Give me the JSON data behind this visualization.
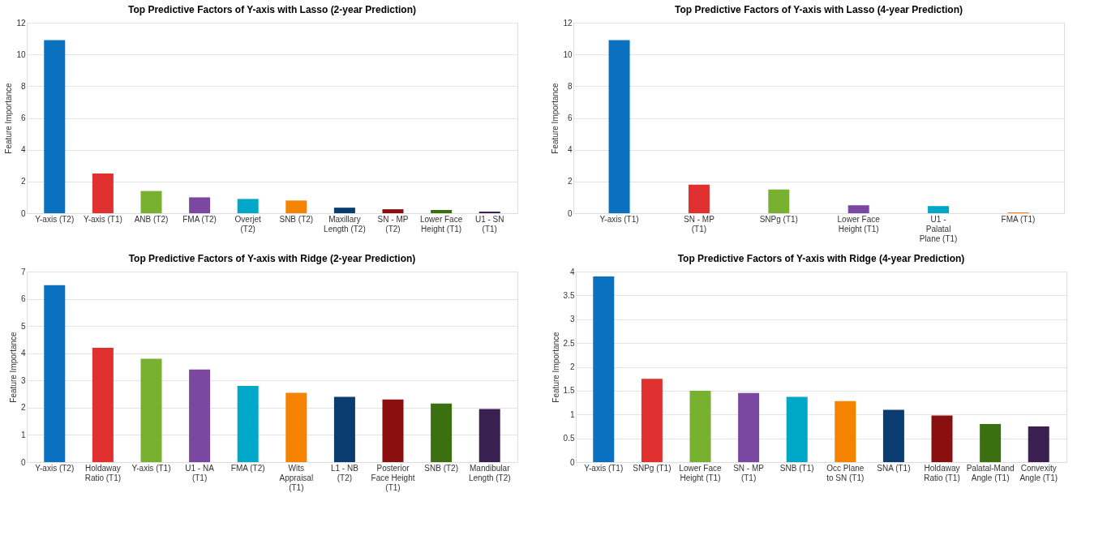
{
  "chart_data": [
    {
      "type": "bar",
      "title": "Top Predictive Factors of Y-axis with Lasso (2-year Prediction)",
      "ylabel": "Feature Importance",
      "categories": [
        "Y-axis (T2)",
        "Y-axis (T1)",
        "ANB (T2)",
        "FMA (T2)",
        "Overjet (T2)",
        "SNB (T2)",
        "Maxillary Length (T2)",
        "SN - MP (T2)",
        "Lower Face Height (T1)",
        "U1 - SN (T1)"
      ],
      "values": [
        10.9,
        2.5,
        1.4,
        1.0,
        0.9,
        0.8,
        0.35,
        0.25,
        0.2,
        0.1
      ],
      "colors": [
        "#0a70c0",
        "#e03030",
        "#78b030",
        "#7a48a0",
        "#00a8c8",
        "#f58200",
        "#0a3c70",
        "#8a1010",
        "#3a7010",
        "#3a2050"
      ],
      "ylim": [
        0,
        12
      ],
      "yticks": [
        0,
        2,
        4,
        6,
        8,
        10,
        12
      ],
      "grid": "y"
    },
    {
      "type": "bar",
      "title": "Top Predictive Factors of Y-axis with Lasso (4-year Prediction)",
      "ylabel": "Feature Importance",
      "categories": [
        "Y-axis (T1)",
        "SN - MP (T1)",
        "SNPg (T1)",
        "Lower Face Height (T1)",
        "U1 - Palatal Plane (T1)",
        "FMA (T1)"
      ],
      "values": [
        10.9,
        1.8,
        1.5,
        0.5,
        0.45,
        0.05
      ],
      "colors": [
        "#0a70c0",
        "#e03030",
        "#78b030",
        "#7a48a0",
        "#00a8c8",
        "#f58200"
      ],
      "ylim": [
        0,
        12
      ],
      "yticks": [
        0,
        2,
        4,
        6,
        8,
        10,
        12
      ],
      "grid": "y"
    },
    {
      "type": "bar",
      "title": "Top Predictive Factors of Y-axis with Ridge (2-year Prediction)",
      "ylabel": "Feature Importance",
      "categories": [
        "Y-axis (T2)",
        "Holdaway Ratio (T1)",
        "Y-axis (T1)",
        "U1 - NA (T1)",
        "FMA (T2)",
        "Wits Appraisal (T1)",
        "L1 - NB (T2)",
        "Posterior Face Height (T1)",
        "SNB (T2)",
        "Mandibular Length (T2)"
      ],
      "values": [
        6.5,
        4.2,
        3.8,
        3.4,
        2.8,
        2.55,
        2.4,
        2.3,
        2.15,
        1.95
      ],
      "colors": [
        "#0a70c0",
        "#e03030",
        "#78b030",
        "#7a48a0",
        "#00a8c8",
        "#f58200",
        "#0a3c70",
        "#8a1010",
        "#3a7010",
        "#3a2050"
      ],
      "ylim": [
        0,
        7
      ],
      "yticks": [
        0,
        1,
        2,
        3,
        4,
        5,
        6,
        7
      ],
      "grid": "y"
    },
    {
      "type": "bar",
      "title": "Top Predictive Factors of Y-axis with Ridge (4-year Prediction)",
      "ylabel": "Feature Importance",
      "categories": [
        "Y-axis (T1)",
        "SNPg (T1)",
        "Lower Face Height (T1)",
        "SN - MP (T1)",
        "SNB (T1)",
        "Occ Plane to SN (T1)",
        "SNA (T1)",
        "Holdaway Ratio (T1)",
        "Palatal-Mand Angle (T1)",
        "Convexity Angle (T1)"
      ],
      "values": [
        3.9,
        1.75,
        1.5,
        1.45,
        1.37,
        1.28,
        1.1,
        0.98,
        0.8,
        0.75
      ],
      "colors": [
        "#0a70c0",
        "#e03030",
        "#78b030",
        "#7a48a0",
        "#00a8c8",
        "#f58200",
        "#0a3c70",
        "#8a1010",
        "#3a7010",
        "#3a2050"
      ],
      "ylim": [
        0,
        4
      ],
      "yticks": [
        0,
        0.5,
        1,
        1.5,
        2,
        2.5,
        3,
        3.5,
        4
      ],
      "grid": "y"
    }
  ]
}
